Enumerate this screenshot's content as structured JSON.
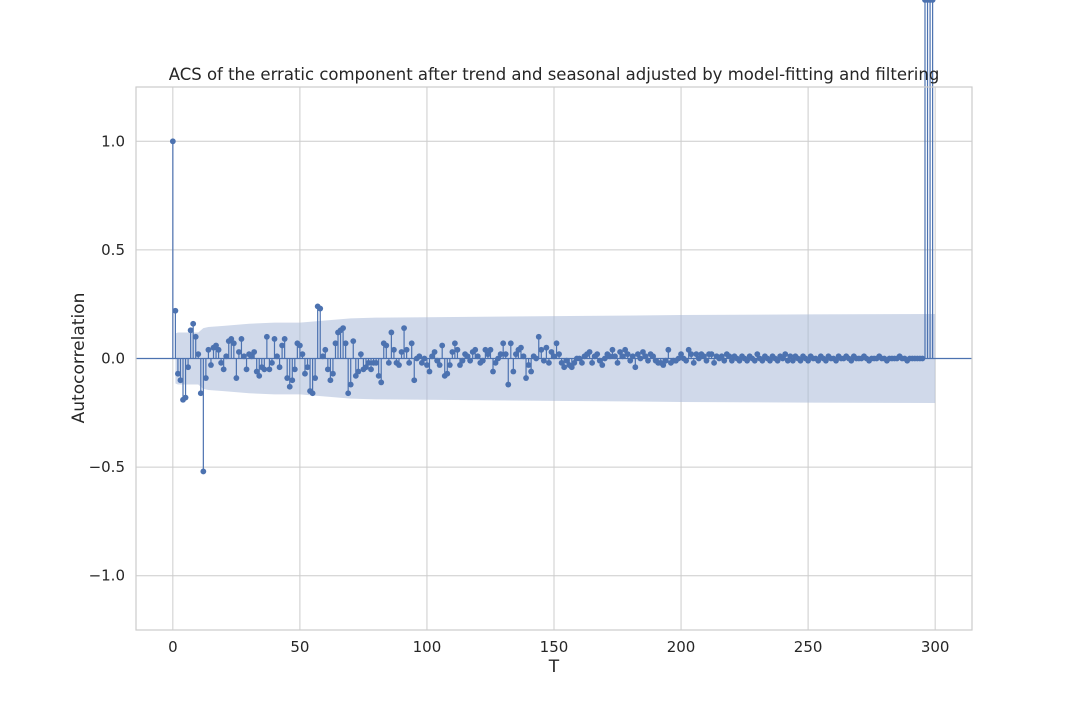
{
  "chart_data": {
    "type": "stem",
    "title": "ACS of the erratic component after trend and seasonal adjusted by model-fitting and filtering",
    "xlabel": "T",
    "ylabel": "Autocorrelation",
    "xlim": [
      -14.5,
      314.5
    ],
    "ylim": [
      -1.25,
      1.25
    ],
    "xticks": [
      0,
      50,
      100,
      150,
      200,
      250,
      300
    ],
    "xtick_labels": [
      "0",
      "50",
      "100",
      "150",
      "200",
      "250",
      "300"
    ],
    "yticks": [
      1.0,
      0.5,
      0.0,
      -0.5,
      -1.0
    ],
    "ytick_labels": [
      "1.0",
      "0.5",
      "0.0",
      "−0.5",
      "−1.0"
    ],
    "grid": true,
    "confidence_band": {
      "x": [
        1,
        2,
        3,
        4,
        5,
        6,
        7,
        8,
        9,
        10,
        12,
        14,
        20,
        30,
        40,
        50,
        60,
        70,
        80,
        100,
        150,
        200,
        250,
        300
      ],
      "upper": [
        0.115,
        0.12,
        0.12,
        0.12,
        0.12,
        0.12,
        0.12,
        0.12,
        0.12,
        0.12,
        0.14,
        0.145,
        0.15,
        0.16,
        0.165,
        0.165,
        0.175,
        0.185,
        0.188,
        0.19,
        0.195,
        0.2,
        0.203,
        0.205
      ],
      "lower": [
        -0.115,
        -0.12,
        -0.12,
        -0.12,
        -0.12,
        -0.12,
        -0.12,
        -0.12,
        -0.12,
        -0.12,
        -0.14,
        -0.145,
        -0.15,
        -0.16,
        -0.165,
        -0.165,
        -0.175,
        -0.185,
        -0.188,
        -0.19,
        -0.195,
        -0.2,
        -0.203,
        -0.205
      ]
    },
    "lags": [
      0,
      1,
      2,
      3,
      4,
      5,
      6,
      7,
      8,
      9,
      10,
      11,
      12,
      13,
      14,
      15,
      16,
      17,
      18,
      19,
      20,
      21,
      22,
      23,
      24,
      25,
      26,
      27,
      28,
      29,
      30,
      31,
      32,
      33,
      34,
      35,
      36,
      37,
      38,
      39,
      40,
      41,
      42,
      43,
      44,
      45,
      46,
      47,
      48,
      49,
      50,
      51,
      52,
      53,
      54,
      55,
      56,
      57,
      58,
      59,
      60,
      61,
      62,
      63,
      64,
      65,
      66,
      67,
      68,
      69,
      70,
      71,
      72,
      73,
      74,
      75,
      76,
      77,
      78,
      79,
      80,
      81,
      82,
      83,
      84,
      85,
      86,
      87,
      88,
      89,
      90,
      91,
      92,
      93,
      94,
      95,
      96,
      97,
      98,
      99,
      100,
      101,
      102,
      103,
      104,
      105,
      106,
      107,
      108,
      109,
      110,
      111,
      112,
      113,
      114,
      115,
      116,
      117,
      118,
      119,
      120,
      121,
      122,
      123,
      124,
      125,
      126,
      127,
      128,
      129,
      130,
      131,
      132,
      133,
      134,
      135,
      136,
      137,
      138,
      139,
      140,
      141,
      142,
      143,
      144,
      145,
      146,
      147,
      148,
      149,
      150,
      151,
      152,
      153,
      154,
      155,
      156,
      157,
      158,
      159,
      160,
      161,
      162,
      163,
      164,
      165,
      166,
      167,
      168,
      169,
      170,
      171,
      172,
      173,
      174,
      175,
      176,
      177,
      178,
      179,
      180,
      181,
      182,
      183,
      184,
      185,
      186,
      187,
      188,
      189,
      190,
      191,
      192,
      193,
      194,
      195,
      196,
      197,
      198,
      199,
      200,
      201,
      202,
      203,
      204,
      205,
      206,
      207,
      208,
      209,
      210,
      211,
      212,
      213,
      214,
      215,
      216,
      217,
      218,
      219,
      220,
      221,
      222,
      223,
      224,
      225,
      226,
      227,
      228,
      229,
      230,
      231,
      232,
      233,
      234,
      235,
      236,
      237,
      238,
      239,
      240,
      241,
      242,
      243,
      244,
      245,
      246,
      247,
      248,
      249,
      250,
      251,
      252,
      253,
      254,
      255,
      256,
      257,
      258,
      259,
      260,
      261,
      262,
      263,
      264,
      265,
      266,
      267,
      268,
      269,
      270,
      271,
      272,
      273,
      274,
      275,
      276,
      277,
      278,
      279,
      280,
      281,
      282,
      283,
      284,
      285,
      286,
      287,
      288,
      289,
      290,
      291,
      292,
      293,
      294,
      295,
      296,
      297,
      298,
      299
    ],
    "values": [
      1.0,
      0.22,
      -0.07,
      -0.1,
      -0.19,
      -0.18,
      -0.04,
      0.13,
      0.16,
      0.1,
      0.02,
      -0.16,
      -0.52,
      -0.09,
      0.04,
      -0.03,
      0.05,
      0.06,
      0.04,
      -0.02,
      -0.05,
      0.01,
      0.08,
      0.09,
      0.07,
      -0.09,
      0.03,
      0.09,
      0.01,
      -0.05,
      0.02,
      0.01,
      0.03,
      -0.06,
      -0.08,
      -0.04,
      -0.05,
      0.1,
      -0.05,
      -0.02,
      0.09,
      0.01,
      -0.04,
      0.06,
      0.09,
      -0.09,
      -0.13,
      -0.1,
      -0.05,
      0.07,
      0.06,
      0.02,
      -0.07,
      -0.04,
      -0.15,
      -0.16,
      -0.09,
      0.24,
      0.23,
      0.01,
      0.04,
      -0.05,
      -0.1,
      -0.07,
      0.07,
      0.12,
      0.13,
      0.14,
      0.07,
      -0.16,
      -0.12,
      0.08,
      -0.08,
      -0.06,
      0.02,
      -0.05,
      -0.04,
      -0.02,
      -0.05,
      -0.02,
      -0.02,
      -0.08,
      -0.11,
      0.07,
      0.06,
      -0.02,
      0.12,
      0.04,
      -0.02,
      -0.03,
      0.03,
      0.14,
      0.04,
      -0.02,
      0.07,
      -0.1,
      0.0,
      0.01,
      -0.02,
      0.0,
      -0.03,
      -0.06,
      0.01,
      0.03,
      -0.01,
      -0.03,
      0.06,
      -0.08,
      -0.07,
      -0.03,
      0.03,
      0.07,
      0.04,
      -0.03,
      -0.01,
      0.02,
      0.01,
      -0.01,
      0.03,
      0.04,
      0.01,
      -0.02,
      -0.01,
      0.04,
      0.02,
      0.04,
      -0.06,
      -0.02,
      0.0,
      0.02,
      0.07,
      0.02,
      -0.12,
      0.07,
      -0.06,
      0.02,
      0.04,
      0.05,
      0.01,
      -0.09,
      -0.03,
      -0.06,
      0.01,
      0.0,
      0.1,
      0.04,
      -0.01,
      0.05,
      -0.02,
      0.03,
      0.01,
      0.07,
      0.02,
      -0.02,
      -0.04,
      -0.01,
      -0.03,
      -0.04,
      -0.02,
      0.0,
      0.0,
      -0.02,
      0.01,
      0.02,
      0.03,
      -0.02,
      0.01,
      0.02,
      -0.01,
      -0.03,
      0.0,
      0.02,
      0.01,
      0.04,
      0.01,
      -0.02,
      0.03,
      0.01,
      0.04,
      0.02,
      -0.01,
      0.01,
      -0.04,
      0.02,
      0.0,
      0.03,
      0.01,
      -0.01,
      0.02,
      0.01,
      -0.01,
      -0.02,
      -0.02,
      -0.03,
      -0.01,
      0.04,
      -0.02,
      -0.01,
      -0.01,
      0.0,
      0.02,
      0.0,
      -0.01,
      0.04,
      0.02,
      -0.02,
      0.02,
      0.0,
      0.02,
      0.01,
      -0.01,
      0.02,
      0.02,
      -0.02,
      0.01,
      0.0,
      0.01,
      -0.01,
      0.02,
      0.01,
      -0.01,
      0.01,
      0.0,
      -0.01,
      0.01,
      0.0,
      -0.01,
      0.01,
      0.0,
      -0.01,
      0.02,
      0.0,
      -0.01,
      0.01,
      0.0,
      -0.01,
      0.01,
      0.0,
      -0.01,
      0.01,
      0.0,
      0.02,
      -0.01,
      0.01,
      -0.01,
      0.01,
      0.0,
      -0.01,
      0.01,
      0.0,
      -0.01,
      0.01,
      0.0,
      0.0,
      -0.01,
      0.01,
      0.0,
      -0.01,
      0.01,
      0.0,
      0.0,
      -0.01,
      0.01,
      0.0,
      0.0,
      0.01,
      0.0,
      -0.01,
      0.01,
      0.0,
      0.0,
      0.0,
      0.01,
      0.0,
      -0.01,
      0.0,
      0.0,
      0.0,
      0.01,
      0.0,
      0.0,
      -0.01,
      0.0,
      0.0,
      0.0,
      0.0,
      0.01,
      0.0,
      0.0,
      -0.01,
      0.0,
      0.0,
      0.0,
      0.0,
      0.0,
      0.0
    ],
    "colors": {
      "stem": "#4c72b0",
      "band": "#aab9d9",
      "grid": "#cccccc",
      "spine": "#cccccc",
      "baseline": "#4c72b0"
    }
  }
}
